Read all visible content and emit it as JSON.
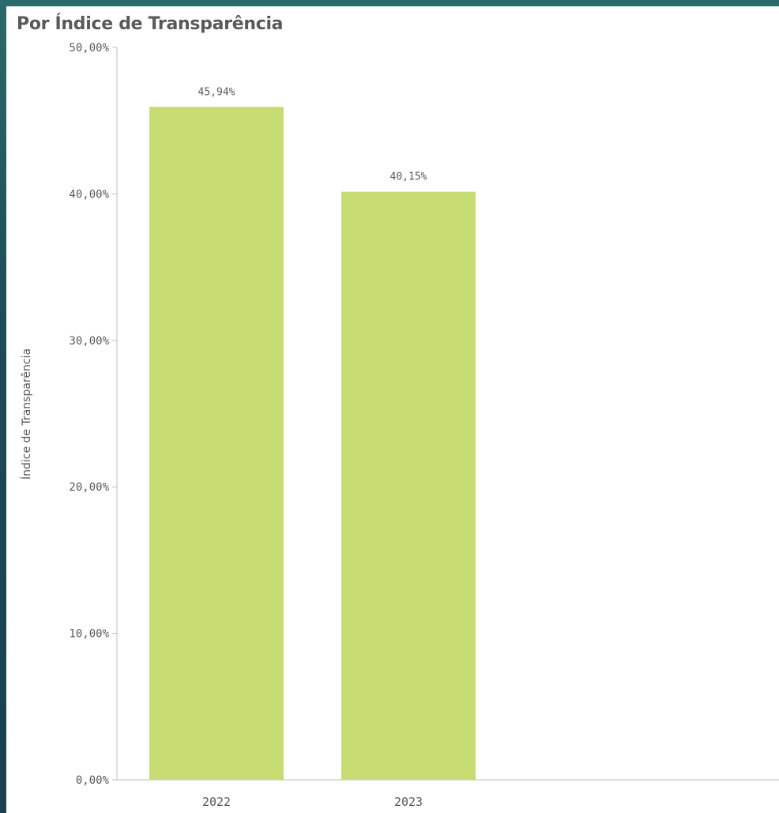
{
  "chart_data": {
    "type": "bar",
    "title": "Por Índice de Transparência",
    "ylabel": "Índice de Transparência",
    "xlabel": "",
    "categories": [
      "2022",
      "2023"
    ],
    "values": [
      45.94,
      40.15
    ],
    "data_labels": [
      "45,94%",
      "40,15%"
    ],
    "ylim": [
      0,
      50
    ],
    "y_ticks": [
      0,
      10,
      20,
      30,
      40,
      50
    ],
    "y_tick_labels": [
      "0,00%",
      "10,00%",
      "20,00%",
      "30,00%",
      "40,00%",
      "50,00%"
    ],
    "grid": false,
    "bar_color": "#c8dc74"
  }
}
